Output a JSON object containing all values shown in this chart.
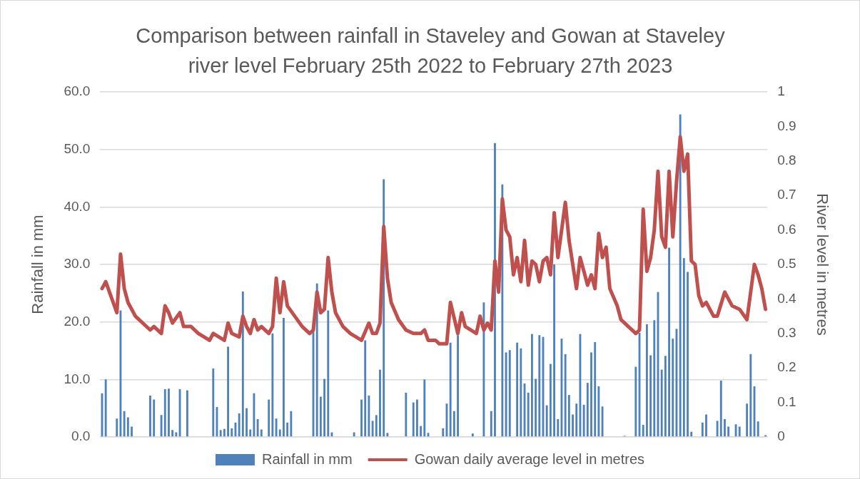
{
  "chart_data": {
    "type": "bar",
    "title": "Comparison between rainfall in Staveley and Gowan at Staveley river level February 25th 2022 to February 27th 2023",
    "ylabel": "Rainfall in mm",
    "y2label": "River level in metres",
    "categories": [
      null,
      null,
      null,
      null,
      null,
      null,
      null,
      null,
      null,
      null,
      null,
      null,
      null,
      null,
      null,
      null,
      null,
      null,
      null,
      null,
      null,
      null,
      null,
      null,
      null,
      null,
      null,
      null,
      null,
      null,
      null,
      null,
      null,
      null,
      null,
      null,
      null,
      null,
      null,
      null,
      null,
      null,
      null,
      null,
      null,
      null,
      null,
      null,
      null,
      null,
      null,
      null,
      null,
      null,
      null,
      null,
      null,
      null,
      null,
      null,
      null,
      null,
      null,
      null,
      null,
      null,
      null,
      null,
      null,
      null,
      null,
      null,
      null,
      null,
      null,
      null,
      null,
      null,
      null,
      null,
      null,
      null,
      null,
      null,
      null,
      null,
      null,
      null,
      null,
      null,
      null,
      null,
      null,
      null,
      null,
      null,
      null,
      null,
      null,
      null,
      null,
      null,
      null,
      null,
      null,
      null,
      null,
      null,
      null,
      null,
      null,
      null,
      null,
      null,
      null,
      null,
      null,
      null,
      null,
      null,
      null,
      null,
      null,
      null,
      null,
      null,
      null,
      null,
      null,
      null,
      null,
      null,
      null,
      null,
      null,
      null,
      null,
      null,
      null,
      null,
      null,
      null,
      null,
      null,
      null,
      null,
      null,
      null,
      null,
      null,
      null,
      null,
      null,
      null,
      null,
      null,
      null,
      null,
      null,
      null,
      null,
      null,
      null,
      null,
      null,
      null,
      null,
      null,
      null,
      null,
      null,
      null,
      null,
      null,
      null,
      null,
      null,
      null,
      null,
      null
    ],
    "series": [
      {
        "name": "Rainfall in mm",
        "color": "#4f81bd",
        "values": [
          7.6,
          10.0,
          0,
          0,
          3.2,
          22.0,
          4.5,
          3.4,
          1.8,
          0,
          0,
          0,
          0,
          7.2,
          6.5,
          0,
          3.8,
          8.3,
          8.4,
          1.2,
          0.8,
          8.3,
          0,
          8.1,
          0,
          0,
          0,
          0,
          0,
          0,
          11.9,
          5.2,
          1.2,
          1.4,
          15.7,
          1.5,
          2.5,
          4.1,
          25.3,
          5.0,
          1.3,
          7.6,
          3.1,
          1.3,
          0,
          6.5,
          18.0,
          3.2,
          1.3,
          20.7,
          2.5,
          4.5,
          0,
          0,
          0,
          0,
          0,
          18.5,
          26.7,
          7.0,
          10.1,
          22.0,
          0.8,
          0,
          0,
          0,
          0,
          0,
          0.8,
          0,
          6.5,
          16.8,
          7.2,
          2.8,
          3.8,
          11.7,
          44.8,
          0.7,
          0,
          0,
          0,
          0,
          7.7,
          0,
          6.0,
          6.5,
          1.9,
          10.0,
          0.7,
          0,
          0,
          0,
          1.5,
          5.8,
          16.4,
          4.5,
          17.7,
          0,
          0,
          0,
          0.6,
          0,
          0,
          23.4,
          0,
          4.5,
          51.1,
          0,
          43.9,
          14.7,
          15.1,
          0,
          16.4,
          15.4,
          9.3,
          7.7,
          17.9,
          10.1,
          17.7,
          17.4,
          5.5,
          12.7,
          30.0,
          3.1,
          17.1,
          14.4,
          7.3,
          3.9,
          5.8,
          17.9,
          5.6,
          9.4,
          14.7,
          16.5,
          8.8,
          5.3,
          0,
          0,
          0,
          0,
          0,
          0.2,
          0,
          0,
          12.2,
          18.1,
          2.1,
          19.6,
          14.2,
          20.3,
          25.2,
          11.7,
          14.1,
          32.9,
          17.1,
          18.8,
          56.1,
          31.1,
          28.7,
          0.9,
          0,
          0,
          2.5,
          3.9,
          0,
          0,
          2.8,
          9.8,
          3.1,
          1.8,
          0,
          2.2,
          1.8,
          0,
          5.8,
          14.4,
          8.8,
          2.7,
          0,
          0.3
        ]
      },
      {
        "name": "Gowan daily average level in metres",
        "type": "line",
        "color": "#c0504d",
        "axis": "y2",
        "values": [
          0.43,
          0.45,
          null,
          null,
          0.36,
          0.53,
          0.43,
          0.39,
          null,
          0.35,
          null,
          null,
          null,
          0.31,
          0.32,
          null,
          0.3,
          0.38,
          0.36,
          0.33,
          null,
          0.36,
          0.32,
          null,
          0.32,
          null,
          0.3,
          null,
          null,
          0.28,
          0.3,
          null,
          null,
          0.28,
          0.33,
          0.3,
          null,
          0.29,
          0.35,
          0.32,
          0.3,
          0.34,
          0.31,
          0.32,
          null,
          0.3,
          0.32,
          0.46,
          0.36,
          0.45,
          0.38,
          null,
          0.35,
          null,
          0.32,
          null,
          0.3,
          0.31,
          0.42,
          0.36,
          0.37,
          0.52,
          0.42,
          0.36,
          null,
          0.32,
          null,
          0.3,
          null,
          null,
          0.28,
          null,
          0.33,
          0.3,
          0.3,
          0.33,
          0.61,
          0.46,
          0.39,
          null,
          0.34,
          null,
          0.31,
          null,
          0.3,
          null,
          0.3,
          0.31,
          0.28,
          null,
          0.28,
          0.27,
          null,
          0.27,
          0.39,
          null,
          0.3,
          0.36,
          0.32,
          null,
          null,
          0.3,
          0.35,
          0.31,
          0.33,
          0.31,
          0.51,
          0.42,
          0.69,
          0.6,
          0.58,
          0.47,
          0.52,
          0.45,
          0.57,
          0.44,
          0.51,
          0.5,
          0.45,
          0.51,
          0.52,
          0.47,
          0.65,
          0.52,
          null,
          0.68,
          0.57,
          null,
          0.43,
          0.52,
          0.48,
          0.44,
          0.47,
          0.43,
          0.59,
          0.52,
          0.55,
          0.43,
          null,
          0.38,
          0.34,
          null,
          0.32,
          null,
          0.3,
          0.31,
          0.66,
          0.48,
          0.52,
          0.6,
          0.77,
          0.58,
          0.55,
          0.77,
          0.58,
          0.74,
          0.87,
          0.77,
          0.82,
          0.51,
          0.5,
          0.41,
          0.38,
          0.39,
          null,
          0.35,
          0.35,
          null,
          0.42,
          null,
          0.38,
          null,
          0.37,
          null,
          0.34,
          null,
          0.5,
          0.47,
          0.43,
          0.37
        ]
      }
    ],
    "ylim": [
      0,
      60
    ],
    "yticks": [
      {
        "value": 0,
        "label": "0.0"
      },
      {
        "value": 10,
        "label": "10.0"
      },
      {
        "value": 20,
        "label": "20.0"
      },
      {
        "value": 30,
        "label": "30.0"
      },
      {
        "value": 40,
        "label": "40.0"
      },
      {
        "value": 50,
        "label": "50.0"
      },
      {
        "value": 60,
        "label": "60.0"
      }
    ],
    "y2lim": [
      0,
      1
    ],
    "y2ticks": [
      0,
      0.1,
      0.2,
      0.3,
      0.4,
      0.5,
      0.6,
      0.7,
      0.8,
      0.9,
      1
    ],
    "grid": "y",
    "legend": "bottom"
  }
}
